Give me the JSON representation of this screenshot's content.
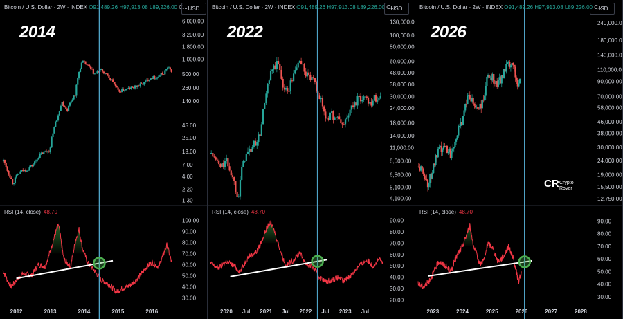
{
  "header": {
    "symbol": "Bitcoin / U.S. Dollar · 2W · INDEX",
    "open": "O91,489.26",
    "high": "H97,913.08",
    "low": "L89,226.00",
    "close": "C..."
  },
  "currency_button": "USD",
  "rsi_label": "RSI (14, close)",
  "rsi_value": "48.70",
  "watermark": {
    "line1": "Crypto",
    "line2": "Rover"
  },
  "colors": {
    "up": "#26a69a",
    "down": "#ef5350",
    "rsi": "#f23645",
    "vline": "#4fa3c7",
    "trend": "#ffffff",
    "circle": "#4caf50"
  },
  "chart_data": [
    {
      "type": "candlestick",
      "title": "2014",
      "y_scale": "log",
      "price_ticks": [
        "6,000.00",
        "3,200.00",
        "1,800.00",
        "1,000.00",
        "500.00",
        "260.00",
        "140.00",
        "45.00",
        "25.00",
        "13.00",
        "7.00",
        "4.00",
        "2.20",
        "1.30"
      ],
      "price_ylim": [
        1.2,
        7000
      ],
      "price_path": [
        [
          2011.6,
          9
        ],
        [
          2011.75,
          5
        ],
        [
          2011.9,
          2.8
        ],
        [
          2012.0,
          4
        ],
        [
          2012.15,
          5.2
        ],
        [
          2012.3,
          5.5
        ],
        [
          2012.5,
          7
        ],
        [
          2012.75,
          12
        ],
        [
          2013.0,
          14
        ],
        [
          2013.2,
          60
        ],
        [
          2013.35,
          130
        ],
        [
          2013.5,
          90
        ],
        [
          2013.75,
          200
        ],
        [
          2013.95,
          900
        ],
        [
          2014.1,
          750
        ],
        [
          2014.3,
          500
        ],
        [
          2014.5,
          600
        ],
        [
          2014.65,
          480
        ],
        [
          2014.85,
          350
        ],
        [
          2015.0,
          220
        ],
        [
          2015.2,
          240
        ],
        [
          2015.5,
          270
        ],
        [
          2015.75,
          320
        ],
        [
          2015.95,
          420
        ],
        [
          2016.15,
          430
        ],
        [
          2016.35,
          520
        ],
        [
          2016.45,
          680
        ],
        [
          2016.6,
          580
        ]
      ],
      "rsi_ticks": [
        "100.00",
        "90.00",
        "80.00",
        "70.00",
        "60.00",
        "50.00",
        "40.00",
        "30.00"
      ],
      "rsi_ylim": [
        24,
        104
      ],
      "rsi_path": [
        [
          2011.6,
          55
        ],
        [
          2011.75,
          45
        ],
        [
          2011.85,
          40
        ],
        [
          2012.0,
          46
        ],
        [
          2012.2,
          52
        ],
        [
          2012.45,
          50
        ],
        [
          2012.65,
          60
        ],
        [
          2012.85,
          58
        ],
        [
          2013.0,
          72
        ],
        [
          2013.15,
          88
        ],
        [
          2013.25,
          96
        ],
        [
          2013.4,
          65
        ],
        [
          2013.6,
          58
        ],
        [
          2013.75,
          82
        ],
        [
          2013.85,
          92
        ],
        [
          2013.95,
          75
        ],
        [
          2014.1,
          62
        ],
        [
          2014.3,
          55
        ],
        [
          2014.5,
          46
        ],
        [
          2014.75,
          42
        ],
        [
          2014.95,
          35
        ],
        [
          2015.1,
          38
        ],
        [
          2015.35,
          41
        ],
        [
          2015.6,
          48
        ],
        [
          2015.85,
          58
        ],
        [
          2016.0,
          62
        ],
        [
          2016.2,
          58
        ],
        [
          2016.35,
          70
        ],
        [
          2016.45,
          78
        ],
        [
          2016.6,
          60
        ]
      ],
      "trendline": [
        [
          2012.0,
          47.5
        ],
        [
          2014.85,
          63.5
        ]
      ],
      "marker_x": 2014.45,
      "x_ticks": [
        "2012",
        "2013",
        "2014",
        "2015",
        "2016"
      ],
      "x_tick_values": [
        2012,
        2013,
        2014,
        2015,
        2016
      ],
      "xlim": [
        2011.6,
        2016.75
      ]
    },
    {
      "type": "candlestick",
      "title": "2022",
      "y_scale": "log",
      "price_ticks": [
        "130,000.00",
        "100,000.00",
        "80,000.00",
        "60,000.00",
        "48,000.00",
        "38,000.00",
        "30,000.00",
        "24,000.00",
        "18,000.00",
        "14,000.00",
        "11,000.00",
        "8,500.00",
        "6,500.00",
        "5,100.00",
        "4,100.00"
      ],
      "price_ylim": [
        3800,
        140000
      ],
      "price_path": [
        [
          2019.6,
          10000
        ],
        [
          2019.85,
          7500
        ],
        [
          2020.0,
          8500
        ],
        [
          2020.2,
          5500
        ],
        [
          2020.3,
          4200
        ],
        [
          2020.45,
          9000
        ],
        [
          2020.65,
          11000
        ],
        [
          2020.85,
          14000
        ],
        [
          2021.0,
          30000
        ],
        [
          2021.15,
          50000
        ],
        [
          2021.3,
          58000
        ],
        [
          2021.45,
          35000
        ],
        [
          2021.55,
          33000
        ],
        [
          2021.7,
          46000
        ],
        [
          2021.85,
          62000
        ],
        [
          2022.0,
          47000
        ],
        [
          2022.2,
          40000
        ],
        [
          2022.35,
          30000
        ],
        [
          2022.5,
          20000
        ],
        [
          2022.65,
          21000
        ],
        [
          2022.85,
          19000
        ],
        [
          2022.95,
          17000
        ],
        [
          2023.1,
          22000
        ],
        [
          2023.3,
          28000
        ],
        [
          2023.5,
          30000
        ],
        [
          2023.65,
          27000
        ],
        [
          2023.8,
          30000
        ],
        [
          2023.9,
          29000
        ]
      ],
      "rsi_ticks": [
        "90.00",
        "80.00",
        "70.00",
        "60.00",
        "50.00",
        "40.00",
        "30.00",
        "20.00"
      ],
      "rsi_ylim": [
        16,
        94
      ],
      "rsi_path": [
        [
          2019.6,
          52
        ],
        [
          2019.8,
          48
        ],
        [
          2020.0,
          54
        ],
        [
          2020.2,
          50
        ],
        [
          2020.35,
          45
        ],
        [
          2020.55,
          58
        ],
        [
          2020.75,
          62
        ],
        [
          2020.85,
          68
        ],
        [
          2021.0,
          82
        ],
        [
          2021.1,
          88
        ],
        [
          2021.2,
          82
        ],
        [
          2021.35,
          65
        ],
        [
          2021.5,
          50
        ],
        [
          2021.7,
          55
        ],
        [
          2021.85,
          62
        ],
        [
          2022.0,
          52
        ],
        [
          2022.2,
          48
        ],
        [
          2022.35,
          40
        ],
        [
          2022.5,
          36
        ],
        [
          2022.7,
          38
        ],
        [
          2022.85,
          40
        ],
        [
          2022.95,
          36
        ],
        [
          2023.15,
          42
        ],
        [
          2023.35,
          50
        ],
        [
          2023.55,
          55
        ],
        [
          2023.7,
          50
        ],
        [
          2023.85,
          56
        ],
        [
          2023.95,
          52
        ]
      ],
      "trendline": [
        [
          2020.1,
          40.5
        ],
        [
          2022.55,
          55.5
        ]
      ],
      "marker_x": 2022.3,
      "x_ticks": [
        "2020",
        "Jul",
        "2021",
        "Jul",
        "2022",
        "Jul",
        "2023",
        "Jul"
      ],
      "x_tick_values": [
        2020,
        2020.5,
        2021,
        2021.5,
        2022,
        2022.5,
        2023,
        2023.5
      ],
      "xlim": [
        2019.6,
        2024.0
      ]
    },
    {
      "type": "candlestick",
      "title": "2026",
      "y_scale": "log",
      "price_ticks": [
        "240,000.00",
        "180,000.00",
        "140,000.00",
        "110,000.00",
        "90,000.00",
        "70,000.00",
        "58,000.00",
        "46,000.00",
        "38,000.00",
        "30,000.00",
        "24,000.00",
        "19,000.00",
        "15,500.00",
        "12,750.00"
      ],
      "price_ylim": [
        12000,
        260000
      ],
      "price_path": [
        [
          2022.5,
          22000
        ],
        [
          2022.7,
          19000
        ],
        [
          2022.85,
          16000
        ],
        [
          2023.0,
          21000
        ],
        [
          2023.2,
          28000
        ],
        [
          2023.45,
          30000
        ],
        [
          2023.6,
          27000
        ],
        [
          2023.8,
          37000
        ],
        [
          2023.95,
          43000
        ],
        [
          2024.1,
          62000
        ],
        [
          2024.2,
          70000
        ],
        [
          2024.4,
          60000
        ],
        [
          2024.55,
          58000
        ],
        [
          2024.7,
          63000
        ],
        [
          2024.85,
          96000
        ],
        [
          2025.0,
          100000
        ],
        [
          2025.15,
          85000
        ],
        [
          2025.3,
          95000
        ],
        [
          2025.5,
          115000
        ],
        [
          2025.65,
          118000
        ],
        [
          2025.75,
          110000
        ],
        [
          2025.85,
          88000
        ],
        [
          2025.95,
          92000
        ]
      ],
      "rsi_ticks": [
        "90.00",
        "80.00",
        "70.00",
        "60.00",
        "50.00",
        "40.00",
        "30.00"
      ],
      "rsi_ylim": [
        24,
        94
      ],
      "rsi_path": [
        [
          2022.5,
          40
        ],
        [
          2022.7,
          38
        ],
        [
          2022.85,
          42
        ],
        [
          2023.0,
          48
        ],
        [
          2023.2,
          58
        ],
        [
          2023.4,
          55
        ],
        [
          2023.6,
          50
        ],
        [
          2023.8,
          62
        ],
        [
          2024.0,
          70
        ],
        [
          2024.15,
          80
        ],
        [
          2024.25,
          86
        ],
        [
          2024.4,
          68
        ],
        [
          2024.6,
          56
        ],
        [
          2024.75,
          60
        ],
        [
          2024.85,
          72
        ],
        [
          2025.0,
          70
        ],
        [
          2025.2,
          58
        ],
        [
          2025.4,
          62
        ],
        [
          2025.55,
          70
        ],
        [
          2025.7,
          62
        ],
        [
          2025.8,
          52
        ],
        [
          2025.9,
          42
        ],
        [
          2026.0,
          50
        ]
      ],
      "trendline": [
        [
          2022.85,
          46.5
        ],
        [
          2026.35,
          58.5
        ]
      ],
      "marker_x": 2026.1,
      "x_ticks": [
        "2023",
        "2024",
        "2025",
        "2026",
        "2027",
        "2028"
      ],
      "x_tick_values": [
        2023,
        2024,
        2025,
        2026,
        2027,
        2028
      ],
      "xlim": [
        2022.5,
        2028.4
      ]
    }
  ]
}
